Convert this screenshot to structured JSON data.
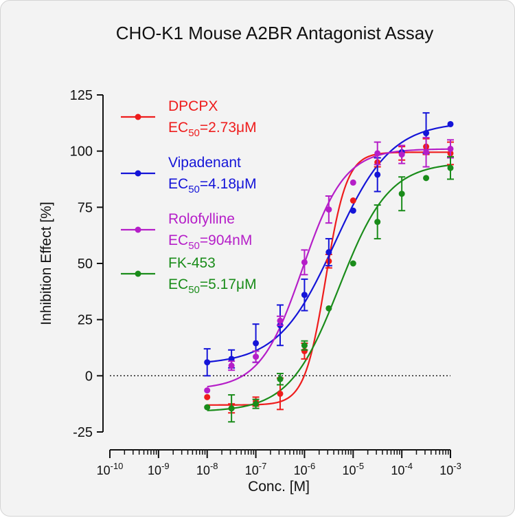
{
  "chart_data": {
    "type": "scatter",
    "title": "CHO-K1 Mouse A2BR Antagonist Assay",
    "xlabel": "Conc. [M]",
    "ylabel": "Inhibition Effect [%]",
    "x_scale": "log",
    "xlim": [
      1e-10,
      0.001
    ],
    "ylim": [
      -25,
      125
    ],
    "x_ticks": [
      {
        "base": "10",
        "exp": "-10",
        "value": 1e-10
      },
      {
        "base": "10",
        "exp": "-9",
        "value": 1e-09
      },
      {
        "base": "10",
        "exp": "-8",
        "value": 1e-08
      },
      {
        "base": "10",
        "exp": "-7",
        "value": 1e-07
      },
      {
        "base": "10",
        "exp": "-6",
        "value": 1e-06
      },
      {
        "base": "10",
        "exp": "-5",
        "value": 1e-05
      },
      {
        "base": "10",
        "exp": "-4",
        "value": 0.0001
      },
      {
        "base": "10",
        "exp": "-3",
        "value": 0.001
      }
    ],
    "y_ticks": [
      "125",
      "100",
      "75",
      "50",
      "25",
      "0",
      "-25"
    ],
    "y_tick_values": [
      125,
      100,
      75,
      50,
      25,
      0,
      -25
    ],
    "zero_line": true,
    "legend_position": "top-left",
    "x": [
      1e-08,
      3.16e-08,
      1e-07,
      3.16e-07,
      1e-06,
      3.16e-06,
      1e-05,
      3.16e-05,
      0.0001,
      0.000316,
      0.001
    ],
    "series": [
      {
        "name": "DPCPX",
        "ec50_prefix": "EC",
        "ec50_sub": "50",
        "ec50_value": "=2.73μM",
        "color": "#ee1c1c",
        "values": [
          -9.5,
          -14.5,
          -11.5,
          -8,
          11,
          51,
          78,
          95,
          99,
          102,
          99
        ],
        "errors": [
          0,
          2,
          2,
          7,
          3.5,
          3,
          0,
          2,
          3,
          3.5,
          5
        ],
        "fit": {
          "bottom": -13,
          "top": 99.5,
          "ec50": 2.73e-06,
          "hill": 2.0
        }
      },
      {
        "name": "Vipadenant",
        "ec50_prefix": "EC",
        "ec50_sub": "50",
        "ec50_value": "=4.18μM",
        "color": "#1414d8",
        "values": [
          6,
          7.5,
          14.5,
          22.5,
          36,
          55,
          73.5,
          89.5,
          99.5,
          108,
          112
        ],
        "errors": [
          6,
          4,
          8.5,
          9,
          7,
          6,
          0,
          7.5,
          0,
          9,
          0
        ],
        "fit": {
          "bottom": 5,
          "top": 113,
          "ec50": 4.18e-06,
          "hill": 0.75
        }
      },
      {
        "name": "Rolofylline",
        "ec50_prefix": "EC",
        "ec50_sub": "50",
        "ec50_value": "=904nM",
        "color": "#b51ec8",
        "values": [
          -6.5,
          4.5,
          8.5,
          24.5,
          50.5,
          74,
          86,
          99,
          98.5,
          99.5,
          101
        ],
        "errors": [
          0,
          2,
          2.5,
          2,
          5.5,
          6,
          0,
          5,
          4,
          6.5,
          4
        ],
        "fit": {
          "bottom": -6,
          "top": 101,
          "ec50": 9.04e-07,
          "hill": 1.0
        }
      },
      {
        "name": "FK-453",
        "ec50_prefix": "EC",
        "ec50_sub": "50",
        "ec50_value": "=5.17μM",
        "color": "#1a8c1a",
        "values": [
          -14,
          -14.5,
          -12.5,
          -1.5,
          13.5,
          30,
          50,
          68.5,
          81,
          88,
          92.5
        ],
        "errors": [
          0,
          6,
          2,
          2.5,
          2,
          0,
          0,
          7.5,
          7.5,
          0,
          5
        ],
        "fit": {
          "bottom": -16,
          "top": 95,
          "ec50": 5.17e-06,
          "hill": 0.85
        }
      }
    ]
  }
}
